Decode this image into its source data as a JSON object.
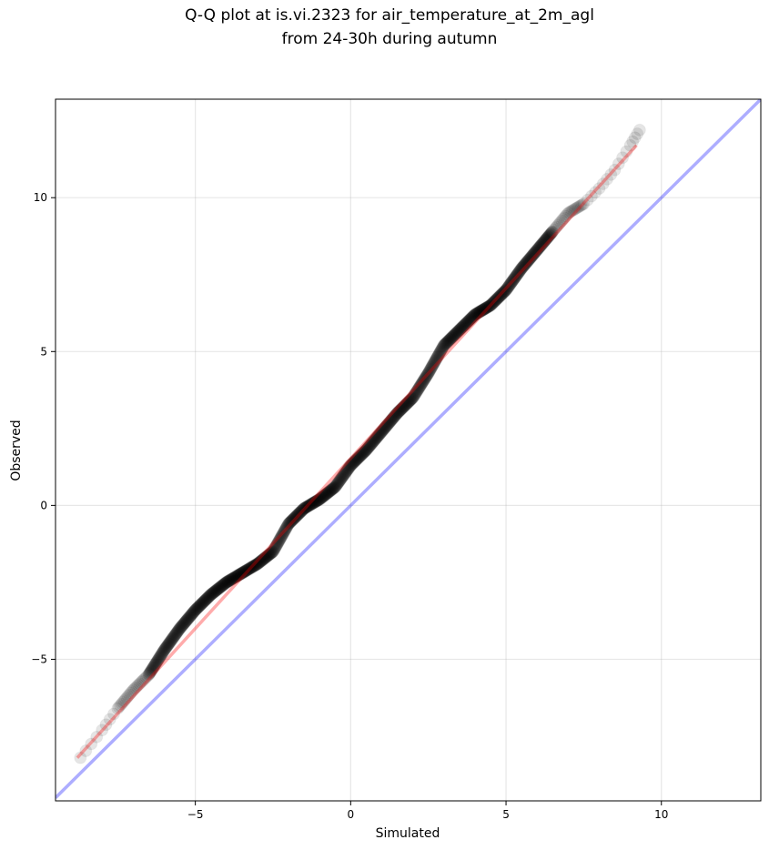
{
  "chart_data": {
    "type": "scatter",
    "title_lines": [
      "Q-Q plot at is.vi.2323 for air_temperature_at_2m_agl",
      "from 24-30h during autumn"
    ],
    "xlabel": "Simulated",
    "ylabel": "Observed",
    "xlim": [
      -9.5,
      13.2
    ],
    "ylim": [
      -9.6,
      13.2
    ],
    "xticks": [
      -5,
      0,
      5,
      10
    ],
    "yticks": [
      -5,
      0,
      5,
      10
    ],
    "xtick_labels": [
      "−5",
      "0",
      "5",
      "10"
    ],
    "ytick_labels": [
      "−5",
      "0",
      "5",
      "10"
    ],
    "grid": true,
    "colors": {
      "points": "#000000",
      "fit_line": "#ff0000",
      "identity_line": "#0000ff"
    },
    "quantile_anchors": [
      [
        -8.7,
        -8.2
      ],
      [
        -8.0,
        -7.3
      ],
      [
        -7.5,
        -6.6
      ],
      [
        -7.0,
        -6.0
      ],
      [
        -6.5,
        -5.5
      ],
      [
        -6.0,
        -4.7
      ],
      [
        -5.5,
        -4.0
      ],
      [
        -5.0,
        -3.4
      ],
      [
        -4.5,
        -2.9
      ],
      [
        -4.0,
        -2.5
      ],
      [
        -3.5,
        -2.2
      ],
      [
        -3.0,
        -1.9
      ],
      [
        -2.5,
        -1.5
      ],
      [
        -2.0,
        -0.6
      ],
      [
        -1.5,
        -0.1
      ],
      [
        -1.0,
        0.2
      ],
      [
        -0.5,
        0.6
      ],
      [
        0.0,
        1.3
      ],
      [
        0.5,
        1.8
      ],
      [
        1.0,
        2.4
      ],
      [
        1.5,
        3.0
      ],
      [
        2.0,
        3.5
      ],
      [
        2.5,
        4.3
      ],
      [
        3.0,
        5.2
      ],
      [
        3.5,
        5.7
      ],
      [
        4.0,
        6.2
      ],
      [
        4.5,
        6.5
      ],
      [
        5.0,
        7.0
      ],
      [
        5.5,
        7.7
      ],
      [
        6.0,
        8.3
      ],
      [
        6.5,
        8.9
      ],
      [
        7.0,
        9.5
      ],
      [
        7.5,
        9.8
      ],
      [
        8.0,
        10.3
      ],
      [
        8.5,
        10.9
      ],
      [
        9.0,
        11.7
      ],
      [
        9.3,
        12.2
      ]
    ],
    "fit_line": {
      "x": [
        -8.8,
        9.2
      ],
      "y": [
        -8.2,
        11.7
      ]
    },
    "identity_line": {
      "x": [
        -9.5,
        13.2
      ],
      "y": [
        -9.5,
        13.2
      ]
    }
  }
}
